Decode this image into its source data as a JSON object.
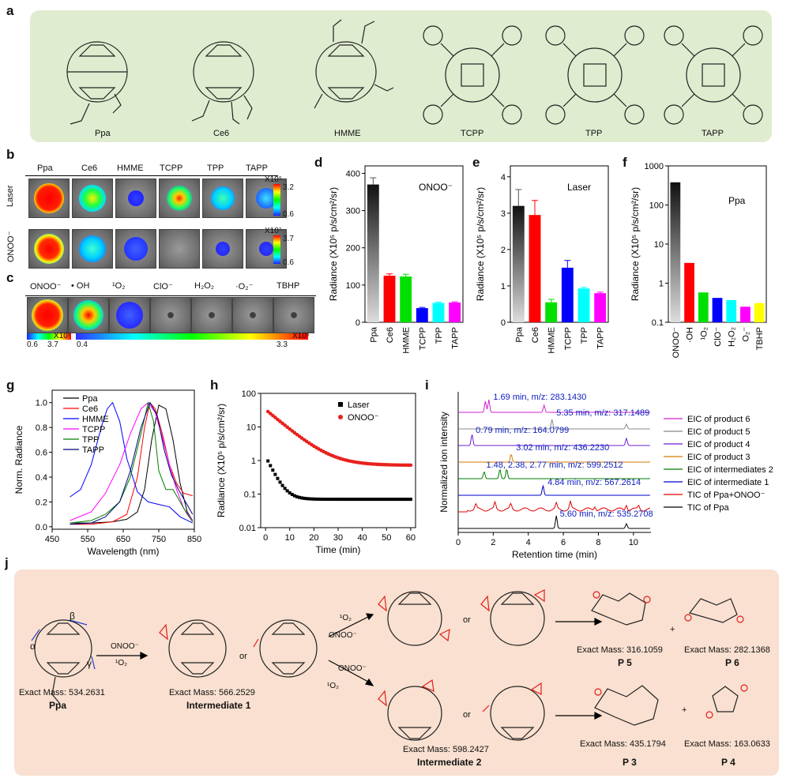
{
  "panels": {
    "a": "a",
    "b": "b",
    "c": "c",
    "d": "d",
    "e": "e",
    "f": "f",
    "g": "g",
    "h": "h",
    "i": "i",
    "j": "j"
  },
  "structures": [
    "Ppa",
    "Ce6",
    "HMME",
    "TCPP",
    "TPP",
    "TAPP"
  ],
  "panel_b": {
    "columns": [
      "Ppa",
      "Ce6",
      "HMME",
      "TCPP",
      "TPP",
      "TAPP"
    ],
    "rows": [
      "Laser",
      "ONOO⁻"
    ],
    "scale1": {
      "exp": "X10⁵",
      "max": "3.2",
      "min": "0.6"
    },
    "scale2": {
      "exp": "X10⁷",
      "max": "3.7",
      "min": "0.6"
    }
  },
  "panel_c": {
    "columns": [
      "ONOO⁻",
      "• OH",
      "¹O₂",
      "ClO⁻",
      "H₂O₂",
      "·O₂⁻",
      "TBHP"
    ],
    "scale_left": {
      "min": "0.6",
      "max": "3.7",
      "exp": "X10⁷"
    },
    "scale_right": {
      "min": "0.4",
      "max": "3.3",
      "exp": "X10⁵"
    }
  },
  "chart_data": [
    {
      "id": "d",
      "type": "bar",
      "ylabel": "Radiance (X10⁵ p/s/cm²/sr)",
      "annotation": "ONOO⁻",
      "categories": [
        "Ppa",
        "Ce6",
        "HMME",
        "TCPP",
        "TPP",
        "TAPP"
      ],
      "values": [
        370,
        125,
        123,
        38,
        52,
        53
      ],
      "errors": [
        18,
        5,
        6,
        2,
        2,
        2
      ],
      "colors": [
        "#3a3a3a",
        "#ff0000",
        "#00e000",
        "#0000ff",
        "#00ffff",
        "#ff00ff"
      ],
      "ylim": [
        0,
        420
      ],
      "yticks": [
        0,
        100,
        200,
        300,
        400
      ]
    },
    {
      "id": "e",
      "type": "bar",
      "ylabel": "Radiance (X10⁵ p/s/cm²/sr)",
      "annotation": "Laser",
      "categories": [
        "Ppa",
        "Ce6",
        "HMME",
        "TCPP",
        "TPP",
        "TAPP"
      ],
      "values": [
        3.2,
        2.95,
        0.55,
        1.5,
        0.93,
        0.8
      ],
      "errors": [
        0.45,
        0.4,
        0.08,
        0.2,
        0.03,
        0.03
      ],
      "colors": [
        "#3a3a3a",
        "#ff0000",
        "#00e000",
        "#0000ff",
        "#00ffff",
        "#ff00ff"
      ],
      "ylim": [
        0,
        4.3
      ],
      "yticks": [
        0,
        1,
        2,
        3,
        4
      ]
    },
    {
      "id": "f",
      "type": "bar",
      "ylabel": "Radiance (X10⁵ p/s/cm²/sr)",
      "annotation": "Ppa",
      "yscale": "log",
      "categories": [
        "ONOO⁻",
        "·OH",
        "¹O₂",
        "ClO⁻",
        "H₂O₂",
        "O₂⁻",
        "TBHP"
      ],
      "values": [
        380,
        3.3,
        0.58,
        0.42,
        0.37,
        0.25,
        0.31
      ],
      "colors": [
        "#3a3a3a",
        "#ff0000",
        "#00e000",
        "#0000ff",
        "#00ffff",
        "#ff00ff",
        "#ffff00"
      ],
      "ylim": [
        0.1,
        1000
      ],
      "yticks": [
        "0.1",
        "1",
        "10",
        "100",
        "1000"
      ]
    },
    {
      "id": "g",
      "type": "line",
      "xlabel": "Wavelength (nm)",
      "ylabel": "Norm. Radiance",
      "xlim": [
        450,
        850
      ],
      "ylim": [
        -0.02,
        1.1
      ],
      "xticks": [
        450,
        550,
        650,
        750,
        850
      ],
      "yticks": [
        "0.0",
        "0.2",
        "0.4",
        "0.6",
        "0.8",
        "1.0"
      ],
      "series": [
        {
          "name": "Ppa",
          "color": "#000000",
          "x": [
            500,
            560,
            620,
            660,
            690,
            710,
            730,
            750,
            770,
            790,
            810,
            830,
            845
          ],
          "y": [
            0.03,
            0.03,
            0.04,
            0.06,
            0.12,
            0.3,
            0.7,
            0.98,
            0.95,
            0.7,
            0.35,
            0.12,
            0.05
          ]
        },
        {
          "name": "Ce6",
          "color": "#ff0000",
          "x": [
            500,
            560,
            620,
            660,
            690,
            710,
            725,
            740,
            760,
            780,
            800,
            820,
            845
          ],
          "y": [
            0.02,
            0.02,
            0.04,
            0.1,
            0.4,
            0.8,
            1.0,
            0.95,
            0.75,
            0.5,
            0.35,
            0.27,
            0.25
          ]
        },
        {
          "name": "HMME",
          "color": "#0000ff",
          "x": [
            500,
            530,
            560,
            590,
            605,
            620,
            640,
            660,
            690,
            720,
            750,
            780,
            810,
            845
          ],
          "y": [
            0.24,
            0.3,
            0.5,
            0.82,
            0.95,
            1.0,
            0.85,
            0.55,
            0.28,
            0.2,
            0.18,
            0.16,
            0.08,
            0.03
          ]
        },
        {
          "name": "TCPP",
          "color": "#ff00ff",
          "x": [
            500,
            560,
            600,
            640,
            670,
            700,
            720,
            740,
            760,
            780,
            800,
            820,
            845
          ],
          "y": [
            0.05,
            0.12,
            0.27,
            0.5,
            0.75,
            0.95,
            1.0,
            0.92,
            0.72,
            0.5,
            0.3,
            0.15,
            0.05
          ]
        },
        {
          "name": "TPP",
          "color": "#008000",
          "x": [
            500,
            560,
            600,
            640,
            670,
            700,
            720,
            735,
            750,
            770,
            790,
            810,
            830,
            845
          ],
          "y": [
            0.03,
            0.05,
            0.1,
            0.2,
            0.4,
            0.75,
            1.0,
            0.85,
            0.45,
            0.3,
            0.3,
            0.2,
            0.1,
            0.04
          ]
        },
        {
          "name": "TAPP",
          "color": "#000080",
          "x": [
            500,
            560,
            600,
            640,
            670,
            700,
            725,
            745,
            765,
            785,
            805,
            825,
            845
          ],
          "y": [
            0.02,
            0.03,
            0.08,
            0.2,
            0.45,
            0.8,
            1.0,
            0.9,
            0.62,
            0.42,
            0.3,
            0.2,
            0.1
          ]
        }
      ]
    },
    {
      "id": "h",
      "type": "scatter",
      "xlabel": "Time (min)",
      "ylabel": "Radiance (X10⁵ p/s/cm²/sr)",
      "yscale": "log",
      "xlim": [
        -2,
        62
      ],
      "ylim": [
        0.01,
        100
      ],
      "xticks": [
        0,
        10,
        20,
        30,
        40,
        50,
        60
      ],
      "yticks": [
        "0.01",
        "0.1",
        "1",
        "10",
        "100"
      ],
      "series": [
        {
          "name": "Laser",
          "color": "#000000",
          "marker": "square",
          "A": 0.07,
          "B": 0.9,
          "k": 0.35
        },
        {
          "name": "ONOO⁻",
          "color": "#e8211c",
          "marker": "circle",
          "A": 0.72,
          "B": 28,
          "k": 0.14
        }
      ]
    },
    {
      "id": "i",
      "type": "line",
      "xlabel": "Retention time (min)",
      "ylabel": "Normalized ion intensity",
      "xlim": [
        0,
        11
      ],
      "xticks": [
        0,
        2,
        4,
        6,
        8,
        10
      ],
      "annotations": [
        "1.69 min, m/z: 283.1430",
        "5.35 min, m/z: 317.1489",
        "0.79 min, m/z: 164.0799",
        "3.02 min, m/z: 436.2230",
        "1.48, 2.38, 2.77 min, m/z: 599.2512",
        "4.84 min, m/z: 567.2614",
        "5.60 min, m/z: 535.2708"
      ],
      "series": [
        {
          "name": "TIC of Ppa",
          "color": "#000000"
        },
        {
          "name": "TIC of Ppa+ONOO⁻",
          "color": "#e00000"
        },
        {
          "name": "EIC of intermediate 1",
          "color": "#0000cc"
        },
        {
          "name": "EIC of intermediates 2",
          "color": "#007a00"
        },
        {
          "name": "EIC of product 3",
          "color": "#d47a00"
        },
        {
          "name": "EIC of product 4",
          "color": "#6a1fd0"
        },
        {
          "name": "EIC of product 5",
          "color": "#888888"
        },
        {
          "name": "EIC of product 6",
          "color": "#d020d0"
        }
      ]
    }
  ],
  "panel_j": {
    "start": {
      "mass": "Exact Mass: 534.2631",
      "name": "Ppa",
      "alpha": "α",
      "beta": "β",
      "gamma": "γ"
    },
    "arrow1": {
      "top": "ONOO⁻",
      "bottom": "¹O₂"
    },
    "int1": {
      "mass": "Exact Mass: 566.2529",
      "name": "Intermediate 1",
      "or": "or"
    },
    "arrow_up": {
      "top": "¹O₂",
      "bottom": "ONOO⁻"
    },
    "arrow_down": {
      "top": "ONOO⁻",
      "bottom": "¹O₂"
    },
    "int2": {
      "mass": "Exact Mass: 598.2427",
      "name": "Intermediate 2",
      "or": "or"
    },
    "or_top": "or",
    "p5": {
      "mass": "Exact Mass: 316.1059",
      "name": "P 5"
    },
    "p6": {
      "mass": "Exact Mass: 282.1368",
      "name": "P 6"
    },
    "p3": {
      "mass": "Exact Mass: 435.1794",
      "name": "P 3"
    },
    "p4": {
      "mass": "Exact Mass: 163.0633",
      "name": "P 4"
    },
    "plus": "+"
  }
}
